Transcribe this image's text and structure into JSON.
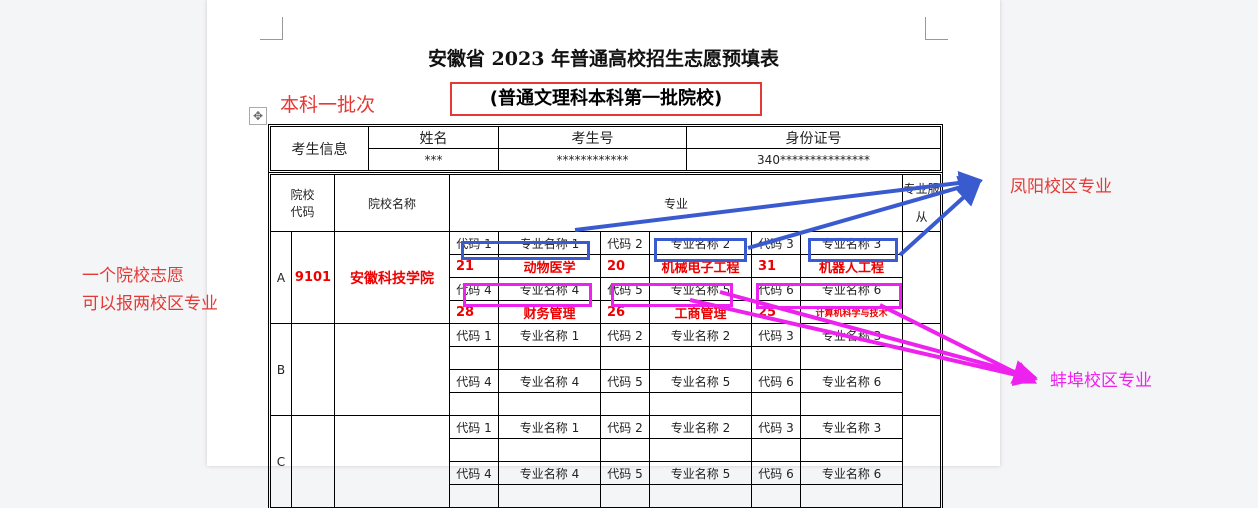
{
  "title": "安徽省 2023 年普通高校招生志愿预填表",
  "subtitle": "(普通文理科本科第一批院校)",
  "annotations": {
    "batch": "本科一批次",
    "note_line1": "一个院校志愿",
    "note_line2": "可以报两校区专业",
    "fengyang": "凤阳校区专业",
    "bengbu": "蚌埠校区专业"
  },
  "colors": {
    "red": "#e53935",
    "blue": "#3a5bd0",
    "magenta": "#ee22ee"
  },
  "student": {
    "label": "考生信息",
    "name_h": "姓名",
    "exam_h": "考生号",
    "id_h": "身份证号",
    "name": "***",
    "exam": "************",
    "id": "340***************"
  },
  "header": {
    "code": "院校代码",
    "school": "院校名称",
    "major": "专业",
    "obey": "专业服从"
  },
  "labels": {
    "code1": "代码 1",
    "code2": "代码 2",
    "code3": "代码 3",
    "code4": "代码 4",
    "code5": "代码 5",
    "code6": "代码 6",
    "name1": "专业名称 1",
    "name2": "专业名称 2",
    "name3": "专业名称 3",
    "name4": "专业名称 4",
    "name5": "专业名称 5",
    "name6": "专业名称 6"
  },
  "rows": [
    {
      "letter": "A",
      "code": "9101",
      "school": "安徽科技学院",
      "majors": [
        {
          "code": "21",
          "name": "动物医学"
        },
        {
          "code": "20",
          "name": "机械电子工程"
        },
        {
          "code": "31",
          "name": "机器人工程"
        },
        {
          "code": "28",
          "name": "财务管理"
        },
        {
          "code": "26",
          "name": "工商管理"
        },
        {
          "code": "25",
          "name": "计算机科学与技术"
        }
      ]
    },
    {
      "letter": "B"
    },
    {
      "letter": "C"
    }
  ]
}
